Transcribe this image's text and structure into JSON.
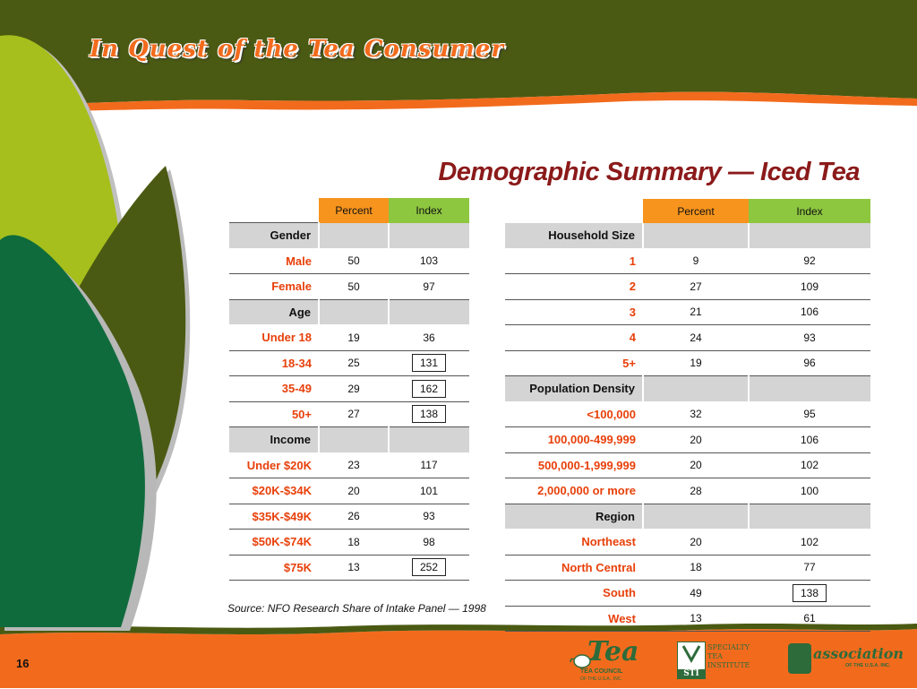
{
  "header": {
    "title": "In Quest of the Tea Consumer"
  },
  "subtitle": "Demographic Summary — Iced Tea",
  "columns": {
    "percent": "Percent",
    "index": "Index"
  },
  "left_table": [
    {
      "type": "section",
      "label": "Gender"
    },
    {
      "label": "Male",
      "percent": "50",
      "index": "103"
    },
    {
      "label": "Female",
      "percent": "50",
      "index": "97"
    },
    {
      "type": "section",
      "label": "Age"
    },
    {
      "label": "Under 18",
      "percent": "19",
      "index": "36"
    },
    {
      "label": "18-34",
      "percent": "25",
      "index": "131",
      "highlight": true
    },
    {
      "label": "35-49",
      "percent": "29",
      "index": "162",
      "highlight": true
    },
    {
      "label": "50+",
      "percent": "27",
      "index": "138",
      "highlight": true
    },
    {
      "type": "section",
      "label": "Income"
    },
    {
      "label": "Under $20K",
      "percent": "23",
      "index": "117"
    },
    {
      "label": "$20K-$34K",
      "percent": "20",
      "index": "101"
    },
    {
      "label": "$35K-$49K",
      "percent": "26",
      "index": "93"
    },
    {
      "label": "$50K-$74K",
      "percent": "18",
      "index": "98"
    },
    {
      "label": "$75K",
      "percent": "13",
      "index": "252",
      "highlight": true
    }
  ],
  "right_table": [
    {
      "type": "section",
      "label": "Household Size"
    },
    {
      "label": "1",
      "percent": "9",
      "index": "92"
    },
    {
      "label": "2",
      "percent": "27",
      "index": "109"
    },
    {
      "label": "3",
      "percent": "21",
      "index": "106"
    },
    {
      "label": "4",
      "percent": "24",
      "index": "93"
    },
    {
      "label": "5+",
      "percent": "19",
      "index": "96"
    },
    {
      "type": "section",
      "label": "Population Density"
    },
    {
      "label": "<100,000",
      "percent": "32",
      "index": "95"
    },
    {
      "label": "100,000-499,999",
      "percent": "20",
      "index": "106"
    },
    {
      "label": "500,000-1,999,999",
      "percent": "20",
      "index": "102"
    },
    {
      "label": "2,000,000 or more",
      "percent": "28",
      "index": "100"
    },
    {
      "type": "section",
      "label": "Region"
    },
    {
      "label": "Northeast",
      "percent": "20",
      "index": "102"
    },
    {
      "label": "North Central",
      "percent": "18",
      "index": "77"
    },
    {
      "label": "South",
      "percent": "49",
      "index": "138",
      "highlight": true
    },
    {
      "label": "West",
      "percent": "13",
      "index": "61"
    }
  ],
  "source": "Source: NFO Research Share of Intake Panel — 1998",
  "page_number": "16",
  "logos": {
    "tea_council": {
      "main": "Tea",
      "line1": "TEA COUNCIL",
      "line2": "OF THE U.S.A., INC."
    },
    "sti": {
      "abbr": "STI",
      "lines": [
        "SPECIALTY",
        "TEA",
        "INSTITUTE"
      ]
    },
    "tea_association": {
      "main": "association",
      "sub": "OF THE U.S.A. INC."
    }
  },
  "colors": {
    "header_green": "#4a5a12",
    "orange": "#f26b1d",
    "percent_header": "#f7941d",
    "index_header": "#8dc63f",
    "label_red": "#e8400a",
    "subtitle_maroon": "#8b1a1a"
  }
}
